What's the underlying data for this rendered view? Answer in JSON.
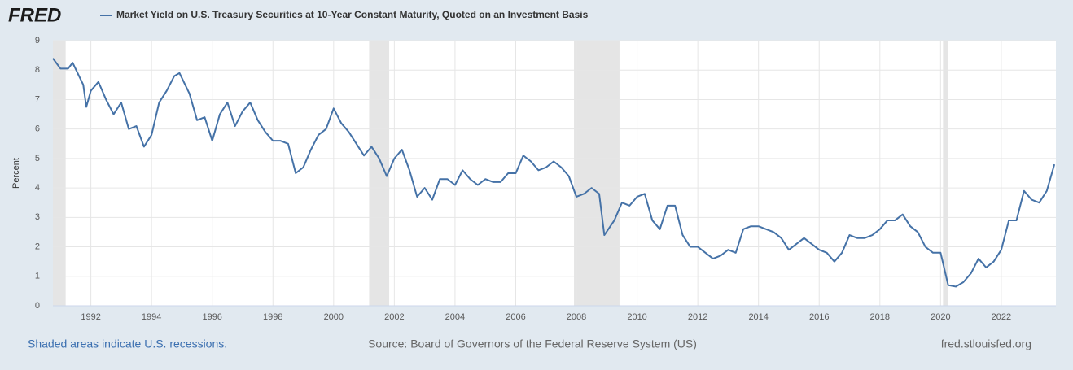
{
  "logo": "FRED",
  "chart_data": {
    "type": "line",
    "title": "Market Yield on U.S. Treasury Securities at 10-Year Constant Maturity, Quoted on an Investment Basis",
    "y_label": "Percent",
    "xlim": [
      1990.75,
      2023.8
    ],
    "xticks": [
      1992,
      1994,
      1996,
      1998,
      2000,
      2002,
      2004,
      2006,
      2008,
      2010,
      2012,
      2014,
      2016,
      2018,
      2020,
      2022
    ],
    "ylim": [
      0,
      9
    ],
    "yticks": [
      0,
      1,
      2,
      3,
      4,
      5,
      6,
      7,
      8,
      9
    ],
    "grid": true,
    "recessions": [
      [
        1990.75,
        1991.17
      ],
      [
        2001.17,
        2001.83
      ],
      [
        2007.92,
        2009.42
      ],
      [
        2020.08,
        2020.25
      ]
    ],
    "x": [
      1990.75,
      1991.0,
      1991.25,
      1991.4,
      1991.75,
      1991.85,
      1992.0,
      1992.25,
      1992.5,
      1992.75,
      1993.0,
      1993.25,
      1993.5,
      1993.75,
      1994.0,
      1994.25,
      1994.5,
      1994.75,
      1994.92,
      1995.25,
      1995.5,
      1995.75,
      1996.0,
      1996.25,
      1996.5,
      1996.75,
      1997.0,
      1997.25,
      1997.5,
      1997.75,
      1998.0,
      1998.25,
      1998.5,
      1998.75,
      1999.0,
      1999.25,
      1999.5,
      1999.75,
      2000.0,
      2000.25,
      2000.5,
      2000.75,
      2001.0,
      2001.25,
      2001.5,
      2001.75,
      2002.0,
      2002.25,
      2002.5,
      2002.75,
      2003.0,
      2003.25,
      2003.5,
      2003.75,
      2004.0,
      2004.25,
      2004.5,
      2004.75,
      2005.0,
      2005.25,
      2005.5,
      2005.75,
      2006.0,
      2006.25,
      2006.5,
      2006.75,
      2007.0,
      2007.25,
      2007.5,
      2007.75,
      2008.0,
      2008.25,
      2008.5,
      2008.75,
      2008.92,
      2009.25,
      2009.5,
      2009.75,
      2010.0,
      2010.25,
      2010.5,
      2010.75,
      2011.0,
      2011.25,
      2011.5,
      2011.75,
      2012.0,
      2012.25,
      2012.5,
      2012.75,
      2013.0,
      2013.25,
      2013.5,
      2013.75,
      2014.0,
      2014.25,
      2014.5,
      2014.75,
      2015.0,
      2015.25,
      2015.5,
      2015.75,
      2016.0,
      2016.25,
      2016.5,
      2016.75,
      2017.0,
      2017.25,
      2017.5,
      2017.75,
      2018.0,
      2018.25,
      2018.5,
      2018.75,
      2019.0,
      2019.25,
      2019.5,
      2019.75,
      2020.0,
      2020.25,
      2020.5,
      2020.75,
      2021.0,
      2021.25,
      2021.5,
      2021.75,
      2022.0,
      2022.25,
      2022.5,
      2022.75,
      2023.0,
      2023.25,
      2023.5,
      2023.75
    ],
    "series": [
      {
        "name": "Market Yield on U.S. Treasury Securities at 10-Year Constant Maturity, Quoted on an Investment Basis",
        "color": "#4572a7",
        "values": [
          8.4,
          8.05,
          8.05,
          8.25,
          7.5,
          6.75,
          7.3,
          7.6,
          7.0,
          6.5,
          6.9,
          6.0,
          6.1,
          5.4,
          5.8,
          6.9,
          7.3,
          7.8,
          7.9,
          7.2,
          6.3,
          6.4,
          5.6,
          6.5,
          6.9,
          6.1,
          6.6,
          6.9,
          6.3,
          5.9,
          5.6,
          5.6,
          5.5,
          4.5,
          4.7,
          5.3,
          5.8,
          6.0,
          6.7,
          6.2,
          5.9,
          5.5,
          5.1,
          5.4,
          5.0,
          4.4,
          5.0,
          5.3,
          4.6,
          3.7,
          4.0,
          3.6,
          4.3,
          4.3,
          4.1,
          4.6,
          4.3,
          4.1,
          4.3,
          4.2,
          4.2,
          4.5,
          4.5,
          5.1,
          4.9,
          4.6,
          4.7,
          4.9,
          4.7,
          4.4,
          3.7,
          3.8,
          4.0,
          3.8,
          2.4,
          2.9,
          3.5,
          3.4,
          3.7,
          3.8,
          2.9,
          2.6,
          3.4,
          3.4,
          2.4,
          2.0,
          2.0,
          1.8,
          1.6,
          1.7,
          1.9,
          1.8,
          2.6,
          2.7,
          2.7,
          2.6,
          2.5,
          2.3,
          1.9,
          2.1,
          2.3,
          2.1,
          1.9,
          1.8,
          1.5,
          1.8,
          2.4,
          2.3,
          2.3,
          2.4,
          2.6,
          2.9,
          2.9,
          3.1,
          2.7,
          2.5,
          2.0,
          1.8,
          1.8,
          0.7,
          0.65,
          0.8,
          1.1,
          1.6,
          1.3,
          1.5,
          1.9,
          2.9,
          2.9,
          3.9,
          3.6,
          3.5,
          3.9,
          4.8
        ]
      }
    ]
  },
  "footer": {
    "left": "Shaded areas indicate U.S. recessions.",
    "center": "Source: Board of Governors of the Federal Reserve System (US)",
    "right": "fred.stlouisfed.org"
  }
}
